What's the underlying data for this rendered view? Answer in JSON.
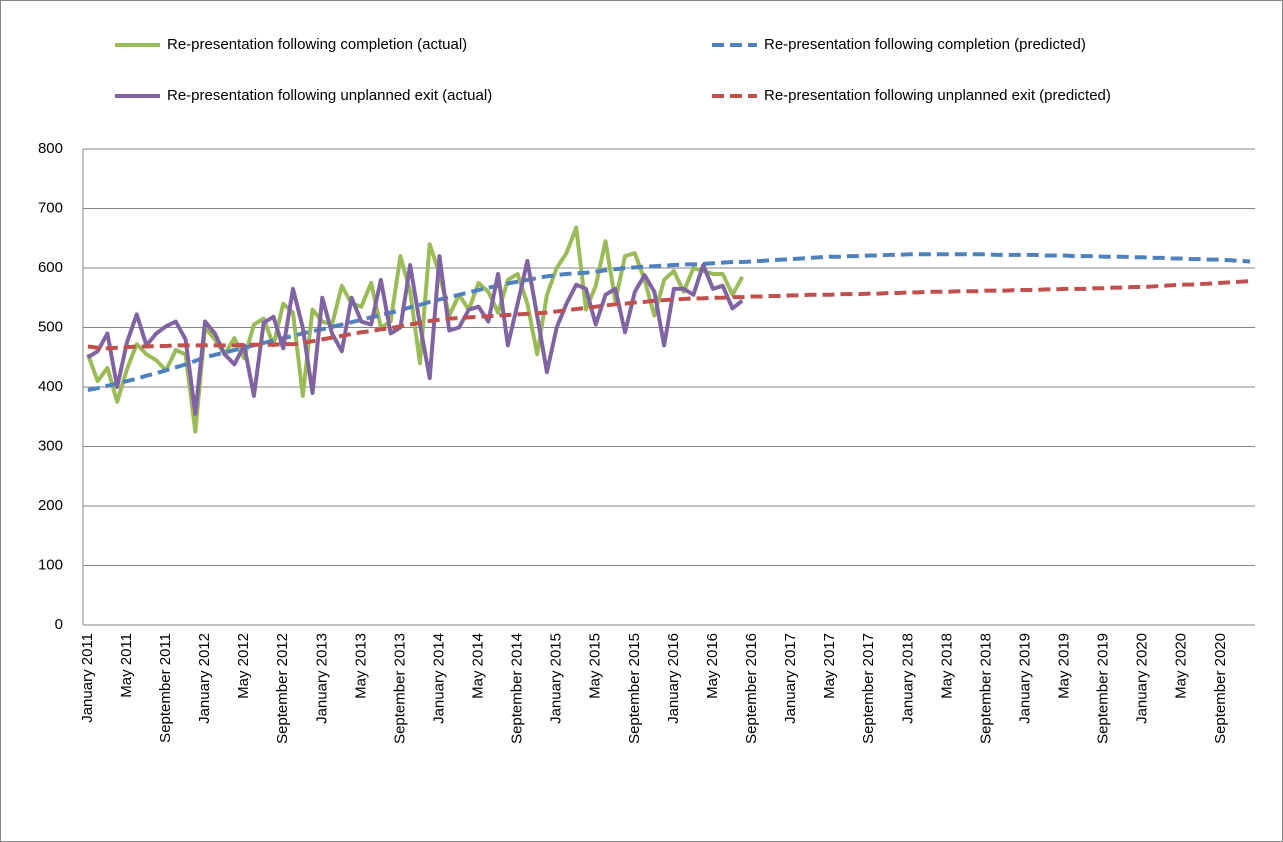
{
  "chart_data": {
    "type": "line",
    "categories": [
      "January 2011",
      null,
      null,
      null,
      "May 2011",
      null,
      null,
      null,
      "September 2011",
      null,
      null,
      null,
      "January 2012",
      null,
      null,
      null,
      "May 2012",
      null,
      null,
      null,
      "September 2012",
      null,
      null,
      null,
      "January 2013",
      null,
      null,
      null,
      "May 2013",
      null,
      null,
      null,
      "September 2013",
      null,
      null,
      null,
      "January 2014",
      null,
      null,
      null,
      "May 2014",
      null,
      null,
      null,
      "September 2014",
      null,
      null,
      null,
      "January 2015",
      null,
      null,
      null,
      "May 2015",
      null,
      null,
      null,
      "September 2015",
      null,
      null,
      null,
      "January 2016",
      null,
      null,
      null,
      "May 2016",
      null,
      null,
      null,
      "September 2016",
      null,
      null,
      null,
      "January 2017",
      null,
      null,
      null,
      "May 2017",
      null,
      null,
      null,
      "September 2017",
      null,
      null,
      null,
      "January 2018",
      null,
      null,
      null,
      "May 2018",
      null,
      null,
      null,
      "September 2018",
      null,
      null,
      null,
      "January 2019",
      null,
      null,
      null,
      "May 2019",
      null,
      null,
      null,
      "September 2019",
      null,
      null,
      null,
      "January 2020",
      null,
      null,
      null,
      "May 2020",
      null,
      null,
      null,
      "September 2020",
      null,
      null,
      null
    ],
    "series": [
      {
        "name": "Re-presentation following completion (actual)",
        "color": "#9bbb59",
        "dashed": false,
        "values": [
          455,
          410,
          432,
          375,
          430,
          472,
          455,
          445,
          428,
          462,
          455,
          325,
          500,
          480,
          455,
          482,
          448,
          505,
          515,
          470,
          540,
          525,
          385,
          530,
          510,
          505,
          570,
          540,
          535,
          575,
          500,
          510,
          620,
          560,
          440,
          640,
          590,
          520,
          555,
          530,
          575,
          560,
          525,
          580,
          590,
          540,
          455,
          555,
          600,
          625,
          668,
          530,
          570,
          645,
          545,
          620,
          625,
          580,
          520,
          580,
          595,
          560,
          600,
          595,
          590,
          590,
          555,
          585,
          null,
          null,
          null,
          null,
          null,
          null,
          null,
          null,
          null,
          null,
          null,
          null,
          null,
          null,
          null,
          null,
          null,
          null,
          null,
          null,
          null,
          null,
          null,
          null,
          null,
          null,
          null,
          null,
          null,
          null,
          null,
          null,
          null,
          null,
          null,
          null,
          null,
          null,
          null,
          null,
          null,
          null,
          null,
          null,
          null,
          null,
          null,
          null,
          null,
          null,
          null,
          null
        ]
      },
      {
        "name": "Re-presentation following completion (predicted)",
        "color": "#4f81bd",
        "dashed": true,
        "values": [
          395,
          398,
          402,
          406,
          410,
          414,
          419,
          423,
          428,
          433,
          438,
          444,
          450,
          454,
          458,
          462,
          466,
          470,
          474,
          478,
          482,
          486,
          490,
          494,
          497,
          501,
          505,
          509,
          513,
          517,
          521,
          525,
          529,
          534,
          538,
          543,
          547,
          551,
          555,
          559,
          563,
          567,
          570,
          574,
          577,
          580,
          583,
          586,
          588,
          590,
          591,
          592,
          594,
          596,
          598,
          600,
          601,
          602,
          603,
          604,
          605,
          606,
          606,
          607,
          608,
          609,
          610,
          610,
          611,
          612,
          613,
          614,
          615,
          616,
          617,
          618,
          619,
          619,
          620,
          620,
          621,
          621,
          622,
          622,
          623,
          623,
          623,
          623,
          623,
          623,
          623,
          623,
          623,
          622,
          622,
          622,
          622,
          622,
          621,
          621,
          621,
          620,
          620,
          620,
          619,
          619,
          619,
          618,
          618,
          617,
          617,
          616,
          616,
          615,
          615,
          614,
          614,
          613,
          612,
          611
        ]
      },
      {
        "name": "Re-presentation following unplanned exit (actual)",
        "color": "#8064a2",
        "dashed": false,
        "values": [
          450,
          460,
          490,
          400,
          475,
          522,
          470,
          490,
          502,
          510,
          480,
          355,
          510,
          490,
          455,
          438,
          470,
          385,
          508,
          518,
          465,
          565,
          500,
          390,
          550,
          490,
          460,
          550,
          510,
          505,
          580,
          490,
          500,
          605,
          505,
          415,
          620,
          495,
          500,
          530,
          535,
          510,
          590,
          470,
          540,
          612,
          520,
          425,
          500,
          540,
          572,
          565,
          505,
          555,
          565,
          492,
          560,
          588,
          560,
          470,
          565,
          565,
          555,
          605,
          565,
          570,
          532,
          545,
          null,
          null,
          null,
          null,
          null,
          null,
          null,
          null,
          null,
          null,
          null,
          null,
          null,
          null,
          null,
          null,
          null,
          null,
          null,
          null,
          null,
          null,
          null,
          null,
          null,
          null,
          null,
          null,
          null,
          null,
          null,
          null,
          null,
          null,
          null,
          null,
          null,
          null,
          null,
          null,
          null,
          null,
          null,
          null,
          null,
          null,
          null,
          null,
          null,
          null,
          null,
          null
        ]
      },
      {
        "name": "Re-presentation following unplanned exit (predicted)",
        "color": "#c0504d",
        "dashed": true,
        "values": [
          468,
          466,
          465,
          466,
          467,
          468,
          468,
          469,
          469,
          470,
          470,
          470,
          470,
          470,
          470,
          470,
          471,
          471,
          471,
          471,
          472,
          472,
          474,
          477,
          480,
          483,
          486,
          489,
          492,
          494,
          497,
          499,
          502,
          505,
          508,
          511,
          513,
          515,
          516,
          517,
          518,
          519,
          520,
          521,
          522,
          523,
          524,
          525,
          527,
          529,
          531,
          533,
          535,
          537,
          539,
          540,
          542,
          543,
          545,
          546,
          547,
          548,
          549,
          549,
          550,
          550,
          551,
          551,
          552,
          552,
          553,
          553,
          554,
          554,
          555,
          555,
          555,
          556,
          556,
          556,
          557,
          557,
          558,
          558,
          559,
          559,
          560,
          560,
          560,
          561,
          561,
          561,
          562,
          562,
          562,
          563,
          563,
          563,
          564,
          564,
          565,
          565,
          565,
          566,
          566,
          567,
          567,
          568,
          568,
          569,
          570,
          571,
          572,
          572,
          573,
          574,
          575,
          576,
          577,
          578
        ]
      }
    ],
    "ylim": [
      0,
      800
    ],
    "yticks": [
      0,
      100,
      200,
      300,
      400,
      500,
      600,
      700,
      800
    ],
    "grid": true,
    "legend": "top"
  }
}
